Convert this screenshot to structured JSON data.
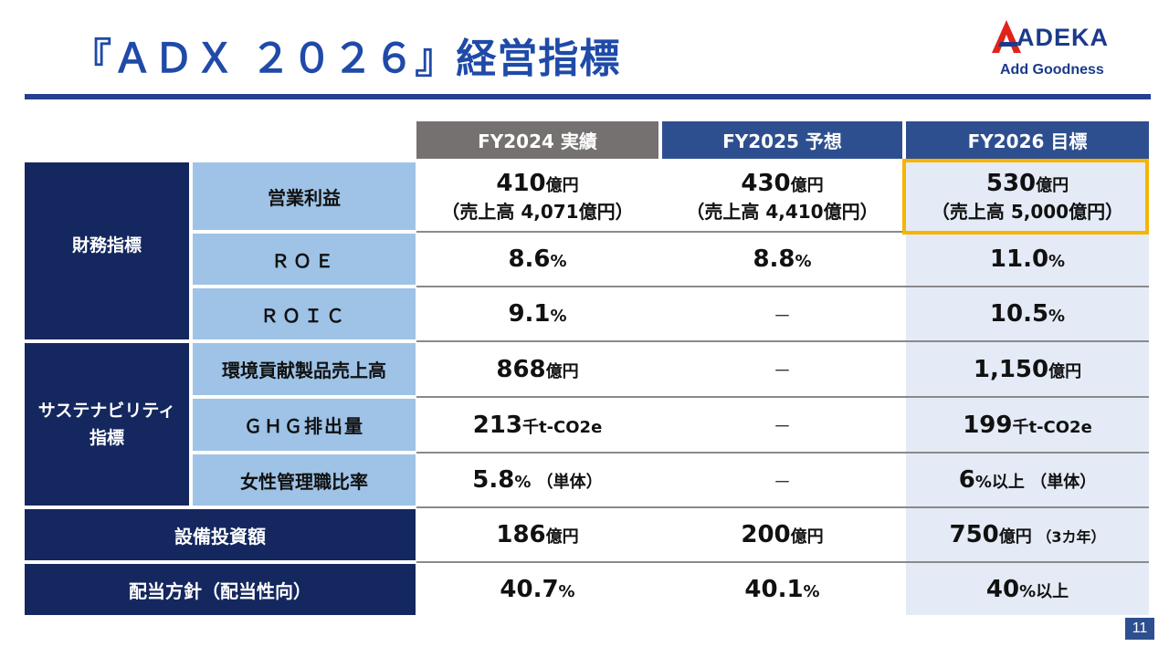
{
  "page": {
    "title": "『ＡＤＸ ２０２６』経営指標",
    "logo_brand": "ADEKA",
    "logo_tagline": "Add Goodness",
    "page_number": "11"
  },
  "colors": {
    "title_blue": "#1f4aa8",
    "navy": "#14275e",
    "light_blue": "#9ec3e6",
    "header_grey": "#767171",
    "header_blue": "#2e4f8f",
    "highlight_gold": "#f5b400",
    "logo_red": "#e2231a"
  },
  "table": {
    "columns": [
      "FY2024 実績",
      "FY2025 予想",
      "FY2026 目標"
    ],
    "sections": {
      "financial": "財務指標",
      "sustainability_line1": "サステナビリティ",
      "sustainability_line2": "指標"
    },
    "rows": {
      "op_income": {
        "label": "営業利益",
        "fy2024": {
          "main": "410",
          "unit": "億円",
          "note": "（売上高 4,071億円）"
        },
        "fy2025": {
          "main": "430",
          "unit": "億円",
          "note": "（売上高 4,410億円）"
        },
        "fy2026": {
          "main": "530",
          "unit": "億円",
          "note": "（売上高 5,000億円）"
        }
      },
      "roe": {
        "label": "ＲＯＥ",
        "fy2024": {
          "main": "8.6",
          "unit": "%"
        },
        "fy2025": {
          "main": "8.8",
          "unit": "%"
        },
        "fy2026": {
          "main": "11.0",
          "unit": "%"
        }
      },
      "roic": {
        "label": "ＲＯＩＣ",
        "fy2024": {
          "main": "9.1",
          "unit": "%"
        },
        "fy2025": {
          "dash": "－"
        },
        "fy2026": {
          "main": "10.5",
          "unit": "%"
        }
      },
      "env_sales": {
        "label": "環境貢献製品売上高",
        "fy2024": {
          "main": "868",
          "unit": "億円"
        },
        "fy2025": {
          "dash": "－"
        },
        "fy2026": {
          "main": "1,150",
          "unit": "億円"
        }
      },
      "ghg": {
        "label": "ＧＨＧ排出量",
        "fy2024": {
          "main": "213",
          "unit": "千t-CO2e"
        },
        "fy2025": {
          "dash": "－"
        },
        "fy2026": {
          "main": "199",
          "unit": "千t-CO2e"
        }
      },
      "women_mgmt": {
        "label": "女性管理職比率",
        "fy2024": {
          "main": "5.8",
          "unit": "%",
          "note": " （単体）"
        },
        "fy2025": {
          "dash": "－"
        },
        "fy2026": {
          "main": "6",
          "unit": "%以上",
          "note": " （単体）"
        }
      },
      "capex": {
        "label": "設備投資額",
        "fy2024": {
          "main": "186",
          "unit": "億円"
        },
        "fy2025": {
          "main": "200",
          "unit": "億円"
        },
        "fy2026": {
          "main": "750",
          "unit": "億円",
          "note": " （3カ年）"
        }
      },
      "dividend": {
        "label": "配当方針（配当性向）",
        "fy2024": {
          "main": "40.7",
          "unit": "%"
        },
        "fy2025": {
          "main": "40.1",
          "unit": "%"
        },
        "fy2026": {
          "main": "40",
          "unit": "%以上"
        }
      }
    }
  }
}
